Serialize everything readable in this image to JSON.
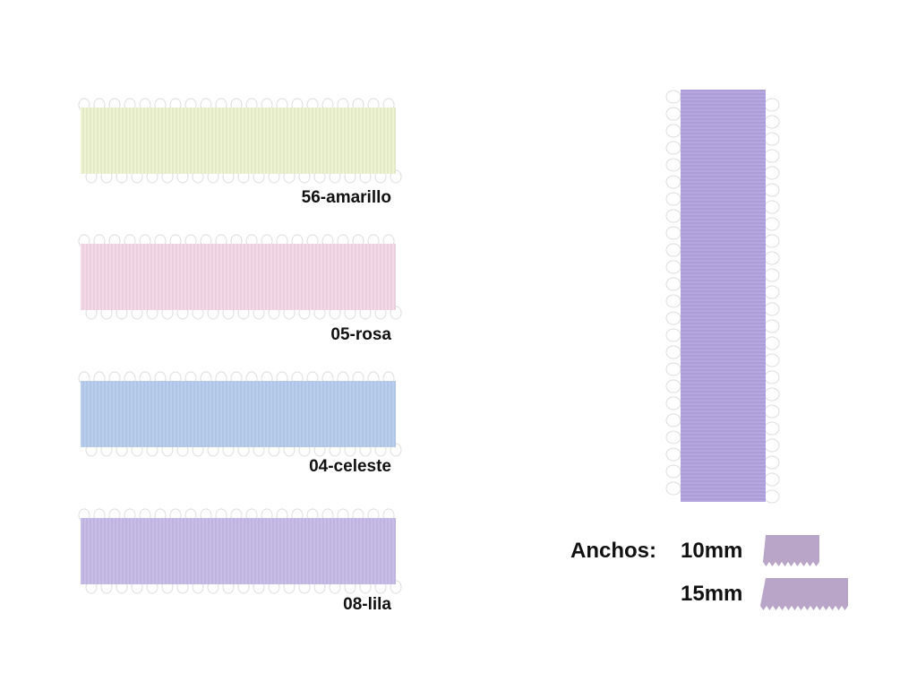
{
  "ribbons": [
    {
      "label": "56-amarillo",
      "color": "#eef3d2"
    },
    {
      "label": "05-rosa",
      "color": "#f6d9e8"
    },
    {
      "label": "04-celeste",
      "color": "#b9cdef"
    },
    {
      "label": "08-lila",
      "color": "#c8bde9"
    }
  ],
  "sample": {
    "color": "#b6a6e2"
  },
  "widths": {
    "title": "Anchos:",
    "items": [
      "10mm",
      "15mm"
    ],
    "color": "#b9a5c7"
  }
}
